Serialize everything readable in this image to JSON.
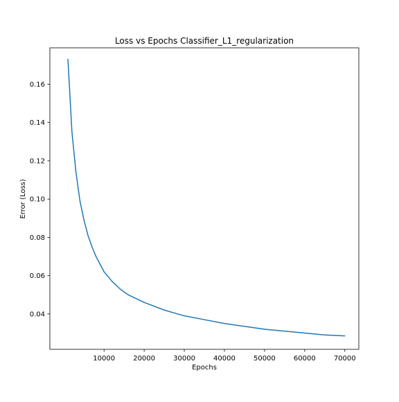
{
  "chart_data": {
    "type": "line",
    "title": "Loss vs Epochs Classifier_L1_regularization",
    "xlabel": "Epochs",
    "ylabel": "Error (Loss)",
    "xlim": [
      -3500,
      73500
    ],
    "ylim": [
      0.0215,
      0.179
    ],
    "xticks": [
      10000,
      20000,
      30000,
      40000,
      50000,
      60000,
      70000
    ],
    "xtick_labels": [
      "10000",
      "20000",
      "30000",
      "40000",
      "50000",
      "60000",
      "70000"
    ],
    "yticks": [
      0.04,
      0.06,
      0.08,
      0.1,
      0.12,
      0.14,
      0.16
    ],
    "ytick_labels": [
      "0.04",
      "0.06",
      "0.08",
      "0.10",
      "0.12",
      "0.14",
      "0.16"
    ],
    "grid": false,
    "legend": "none",
    "series": [
      {
        "color": "#1f77b4",
        "x": [
          1000,
          2000,
          3000,
          4000,
          5000,
          6000,
          7000,
          8000,
          9000,
          10000,
          12000,
          14000,
          16000,
          18000,
          20000,
          25000,
          30000,
          35000,
          40000,
          45000,
          50000,
          55000,
          60000,
          65000,
          70000
        ],
        "y": [
          0.173,
          0.135,
          0.114,
          0.099,
          0.089,
          0.081,
          0.075,
          0.07,
          0.066,
          0.062,
          0.057,
          0.053,
          0.05,
          0.048,
          0.046,
          0.042,
          0.039,
          0.037,
          0.035,
          0.0335,
          0.032,
          0.031,
          0.03,
          0.029,
          0.0285
        ]
      }
    ]
  }
}
